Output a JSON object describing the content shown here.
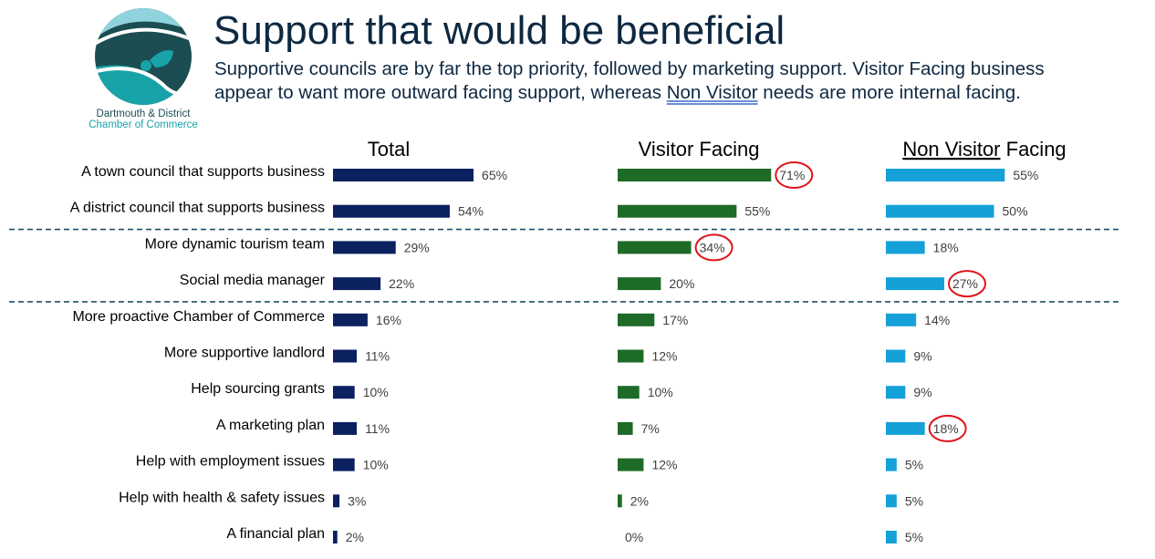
{
  "title": "Support that would be beneficial",
  "subtitle": {
    "before": "Supportive councils are by far the top priority, followed by marketing support. Visitor Facing business appear to want more outward facing support, whereas ",
    "underlined": "Non Visitor",
    "after": " needs are more internal facing."
  },
  "logo": {
    "line1": "Dartmouth & District",
    "line2": "Chamber of Commerce"
  },
  "colors": {
    "total": "#0b2160",
    "visitor": "#1d6b27",
    "non_visitor": "#15a0d8",
    "circle": "#e0141b",
    "divider": "#1f4e68"
  },
  "chart_data": {
    "type": "bar",
    "orientation": "horizontal",
    "title": "Support that would be beneficial",
    "categories": [
      "A town council that supports business",
      "A district council that supports business",
      "More dynamic tourism team",
      "Social media manager",
      "More proactive Chamber of Commerce",
      "More supportive landlord",
      "Help sourcing grants",
      "A marketing plan",
      "Help with employment issues",
      "Help with health & safety issues",
      "A financial plan"
    ],
    "series": [
      {
        "name": "Total",
        "header_main": "Total",
        "header_suffix": "",
        "values": [
          65,
          54,
          29,
          22,
          16,
          11,
          10,
          11,
          10,
          3,
          2
        ],
        "circled": []
      },
      {
        "name": "Visitor Facing",
        "header_main": "Visitor Facing",
        "header_suffix": "",
        "values": [
          71,
          55,
          34,
          20,
          17,
          12,
          10,
          7,
          12,
          2,
          0
        ],
        "circled": [
          0,
          2
        ]
      },
      {
        "name": "Non Visitor Facing",
        "header_main": "Non Visitor",
        "header_suffix": " Facing",
        "values": [
          55,
          50,
          18,
          27,
          14,
          9,
          9,
          18,
          5,
          5,
          5
        ],
        "circled": [
          3,
          7
        ]
      }
    ],
    "value_format": "percent",
    "xlim": [
      0,
      100
    ],
    "group_dividers_after": [
      1,
      3
    ]
  }
}
